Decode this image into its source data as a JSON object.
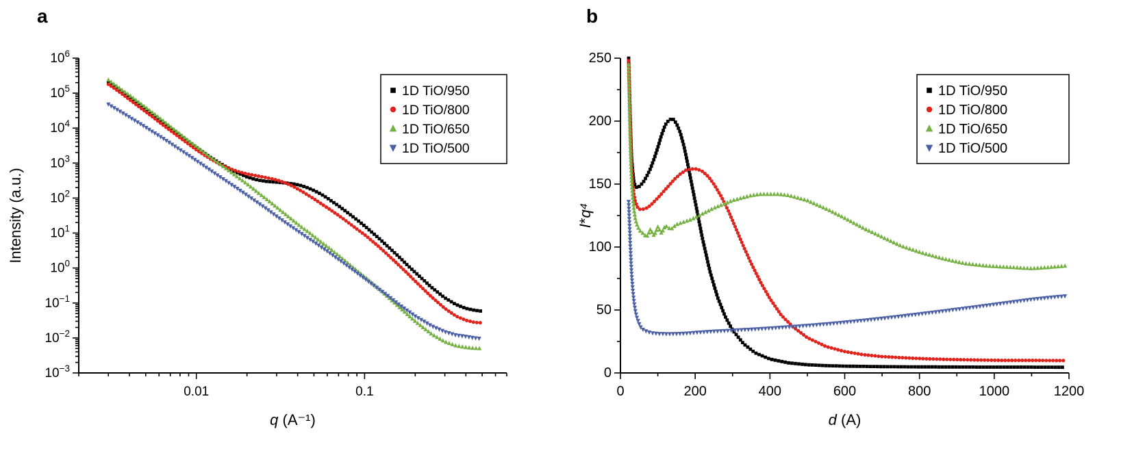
{
  "figure": {
    "background": "#ffffff"
  },
  "chart_data": [
    {
      "panel_label": "a",
      "type": "scatter",
      "x_scale": "log",
      "y_scale": "log",
      "xlim": [
        0.002,
        0.7
      ],
      "ylim": [
        0.001,
        1000000
      ],
      "grid": false,
      "xlabel_parts": [
        {
          "text": "q",
          "italic": true
        },
        {
          "text": " (A⁻¹)",
          "italic": false
        }
      ],
      "ylabel_parts": [
        {
          "text": "Intensity (a.u.)",
          "italic": false
        }
      ],
      "x_ticks": [
        {
          "v": 0.01,
          "label": "0.01"
        },
        {
          "v": 0.1,
          "label": "0.1"
        }
      ],
      "y_ticks": [
        {
          "v": 1000000,
          "exp": 6
        },
        {
          "v": 100000,
          "exp": 5
        },
        {
          "v": 10000,
          "exp": 4
        },
        {
          "v": 1000,
          "exp": 3
        },
        {
          "v": 100,
          "exp": 2
        },
        {
          "v": 10,
          "exp": 1
        },
        {
          "v": 1,
          "exp": 0
        },
        {
          "v": 0.1,
          "exp": -1
        },
        {
          "v": 0.01,
          "exp": -2
        },
        {
          "v": 0.001,
          "exp": -3
        }
      ],
      "legend": {
        "position": "top-right"
      },
      "series": [
        {
          "name": "1D TiO/950",
          "color": "#000000",
          "marker": "square",
          "x": [
            0.003,
            0.0033,
            0.0036,
            0.004,
            0.0045,
            0.005,
            0.0055,
            0.006,
            0.007,
            0.008,
            0.009,
            0.01,
            0.012,
            0.014,
            0.016,
            0.018,
            0.02,
            0.023,
            0.026,
            0.03,
            0.034,
            0.038,
            0.042,
            0.046,
            0.05,
            0.055,
            0.06,
            0.07,
            0.08,
            0.09,
            0.1,
            0.12,
            0.14,
            0.16,
            0.18,
            0.2,
            0.25,
            0.3,
            0.35,
            0.4,
            0.45,
            0.5
          ],
          "y": [
            200000,
            150000,
            110000,
            75000,
            50000,
            34000,
            24000,
            17500,
            9800,
            6000,
            3900,
            2700,
            1500,
            950,
            660,
            500,
            400,
            330,
            300,
            285,
            270,
            252,
            228,
            196,
            165,
            130,
            100,
            60,
            37,
            24,
            16,
            7.5,
            3.8,
            2.1,
            1.2,
            0.75,
            0.28,
            0.14,
            0.09,
            0.07,
            0.062,
            0.058
          ]
        },
        {
          "name": "1D TiO/800",
          "color": "#e0231d",
          "marker": "circle",
          "x": [
            0.003,
            0.0033,
            0.0036,
            0.004,
            0.0045,
            0.005,
            0.0055,
            0.006,
            0.007,
            0.008,
            0.009,
            0.01,
            0.012,
            0.014,
            0.016,
            0.018,
            0.02,
            0.023,
            0.026,
            0.03,
            0.034,
            0.038,
            0.042,
            0.046,
            0.05,
            0.055,
            0.06,
            0.07,
            0.08,
            0.09,
            0.1,
            0.12,
            0.14,
            0.16,
            0.18,
            0.2,
            0.25,
            0.3,
            0.35,
            0.4,
            0.45,
            0.5
          ],
          "y": [
            180000,
            132000,
            97000,
            66000,
            43000,
            29500,
            21000,
            15000,
            8600,
            5300,
            3500,
            2400,
            1350,
            900,
            680,
            560,
            490,
            430,
            385,
            330,
            270,
            210,
            160,
            122,
            95,
            70,
            53,
            32,
            20,
            13,
            9,
            4.3,
            2.2,
            1.2,
            0.7,
            0.42,
            0.15,
            0.07,
            0.042,
            0.032,
            0.028,
            0.027
          ]
        },
        {
          "name": "1D TiO/650",
          "color": "#74b042",
          "marker": "triangle-up",
          "x": [
            0.003,
            0.0033,
            0.0036,
            0.004,
            0.0045,
            0.005,
            0.0055,
            0.006,
            0.007,
            0.008,
            0.009,
            0.01,
            0.012,
            0.014,
            0.016,
            0.018,
            0.02,
            0.023,
            0.026,
            0.03,
            0.034,
            0.038,
            0.042,
            0.046,
            0.05,
            0.055,
            0.06,
            0.07,
            0.08,
            0.09,
            0.1,
            0.12,
            0.14,
            0.16,
            0.18,
            0.2,
            0.25,
            0.3,
            0.35,
            0.4,
            0.45,
            0.5
          ],
          "y": [
            240000,
            170000,
            125000,
            88000,
            57000,
            39000,
            27500,
            20000,
            11200,
            6800,
            4400,
            3000,
            1550,
            900,
            560,
            370,
            255,
            150,
            95,
            55,
            34,
            22,
            15,
            11,
            8,
            5.6,
            4.1,
            2.3,
            1.35,
            0.85,
            0.56,
            0.27,
            0.14,
            0.078,
            0.047,
            0.03,
            0.013,
            0.0078,
            0.006,
            0.0054,
            0.0051,
            0.005
          ]
        },
        {
          "name": "1D TiO/500",
          "color": "#4a5fa5",
          "marker": "triangle-down",
          "x": [
            0.003,
            0.0033,
            0.0036,
            0.004,
            0.0045,
            0.005,
            0.0055,
            0.006,
            0.007,
            0.008,
            0.009,
            0.01,
            0.012,
            0.014,
            0.016,
            0.018,
            0.02,
            0.023,
            0.026,
            0.03,
            0.034,
            0.038,
            0.042,
            0.046,
            0.05,
            0.055,
            0.06,
            0.07,
            0.08,
            0.09,
            0.1,
            0.12,
            0.14,
            0.16,
            0.18,
            0.2,
            0.25,
            0.3,
            0.35,
            0.4,
            0.45,
            0.5
          ],
          "y": [
            48000,
            36000,
            28000,
            20500,
            14500,
            10500,
            7800,
            6000,
            3700,
            2400,
            1650,
            1170,
            640,
            385,
            250,
            170,
            120,
            75,
            50,
            30,
            19.5,
            13.5,
            9.7,
            7.2,
            5.5,
            4.0,
            3.0,
            1.75,
            1.1,
            0.72,
            0.5,
            0.26,
            0.15,
            0.09,
            0.06,
            0.042,
            0.022,
            0.015,
            0.012,
            0.011,
            0.01,
            0.0095
          ]
        }
      ]
    },
    {
      "panel_label": "b",
      "type": "scatter",
      "x_scale": "linear",
      "y_scale": "linear",
      "xlim": [
        0,
        1200
      ],
      "ylim": [
        0,
        250
      ],
      "grid": false,
      "x_minor_step": 100,
      "y_minor_step": 25,
      "xlabel_parts": [
        {
          "text": "d",
          "italic": true
        },
        {
          "text": " (A)",
          "italic": false
        }
      ],
      "ylabel_parts": [
        {
          "text": "I",
          "italic": true
        },
        {
          "text": "*",
          "italic": false
        },
        {
          "text": "q⁴",
          "italic": true
        }
      ],
      "x_ticks": [
        {
          "v": 0,
          "label": "0"
        },
        {
          "v": 200,
          "label": "200"
        },
        {
          "v": 400,
          "label": "400"
        },
        {
          "v": 600,
          "label": "600"
        },
        {
          "v": 800,
          "label": "800"
        },
        {
          "v": 1000,
          "label": "1000"
        },
        {
          "v": 1200,
          "label": "1200"
        }
      ],
      "y_ticks": [
        {
          "v": 0,
          "label": "0"
        },
        {
          "v": 50,
          "label": "50"
        },
        {
          "v": 100,
          "label": "100"
        },
        {
          "v": 150,
          "label": "150"
        },
        {
          "v": 200,
          "label": "200"
        },
        {
          "v": 250,
          "label": "250"
        }
      ],
      "legend": {
        "position": "top-right"
      },
      "series": [
        {
          "name": "1D TiO/950",
          "color": "#000000",
          "marker": "square",
          "x": [
            22,
            24,
            26,
            28,
            30,
            33,
            36,
            40,
            45,
            50,
            60,
            70,
            80,
            90,
            100,
            110,
            120,
            130,
            140,
            150,
            160,
            170,
            180,
            190,
            200,
            220,
            240,
            260,
            280,
            300,
            330,
            360,
            400,
            450,
            500,
            550,
            600,
            700,
            800,
            900,
            1000,
            1100,
            1190
          ],
          "y": [
            250,
            228,
            205,
            186,
            170,
            160,
            152,
            148,
            147,
            148,
            151,
            156,
            162,
            170,
            179,
            189,
            197,
            201,
            202,
            198,
            191,
            180,
            166,
            151,
            136,
            106,
            80,
            60,
            45,
            34,
            23,
            16,
            11,
            8,
            6.5,
            5.8,
            5.4,
            5,
            4.8,
            4.7,
            4.6,
            4.6,
            4.5
          ]
        },
        {
          "name": "1D TiO/800",
          "color": "#e0231d",
          "marker": "circle",
          "x": [
            22,
            24,
            26,
            28,
            30,
            33,
            36,
            40,
            45,
            50,
            60,
            70,
            80,
            90,
            100,
            115,
            130,
            145,
            160,
            175,
            190,
            205,
            220,
            235,
            250,
            270,
            290,
            310,
            330,
            350,
            375,
            400,
            430,
            460,
            500,
            550,
            600,
            650,
            700,
            760,
            820,
            880,
            950,
            1020,
            1100,
            1190
          ],
          "y": [
            248,
            224,
            200,
            178,
            163,
            150,
            142,
            136,
            132,
            130,
            130,
            131,
            133,
            136,
            139,
            144,
            149,
            154,
            158,
            161,
            162,
            162,
            160,
            156,
            150,
            140,
            128,
            114,
            100,
            87,
            72,
            59,
            46,
            37,
            28,
            21,
            17,
            14.5,
            13,
            12,
            11.2,
            10.7,
            10.3,
            10,
            10,
            9.8
          ]
        },
        {
          "name": "1D TiO/650",
          "color": "#74b042",
          "marker": "triangle-up",
          "x": [
            22,
            24,
            26,
            28,
            30,
            33,
            36,
            40,
            45,
            50,
            55,
            60,
            70,
            80,
            90,
            100,
            110,
            120,
            135,
            150,
            170,
            190,
            210,
            230,
            250,
            275,
            300,
            325,
            350,
            375,
            400,
            425,
            450,
            475,
            500,
            530,
            560,
            600,
            650,
            700,
            750,
            800,
            860,
            920,
            980,
            1040,
            1100,
            1150,
            1190
          ],
          "y": [
            245,
            214,
            188,
            167,
            151,
            139,
            130,
            122,
            117,
            114,
            112,
            111,
            108,
            114,
            109,
            116,
            111,
            117,
            114,
            118,
            120,
            122,
            125,
            128,
            131,
            134,
            137,
            139,
            141,
            142,
            142,
            142,
            141,
            139,
            137,
            133,
            129,
            123,
            115,
            108,
            101,
            96,
            91,
            87,
            85,
            84,
            83,
            84,
            85
          ]
        },
        {
          "name": "1D TiO/500",
          "color": "#4a5fa5",
          "marker": "triangle-down",
          "x": [
            22,
            24,
            26,
            28,
            30,
            33,
            36,
            40,
            45,
            50,
            55,
            60,
            70,
            80,
            90,
            100,
            120,
            140,
            160,
            180,
            200,
            250,
            300,
            350,
            400,
            450,
            500,
            550,
            600,
            650,
            700,
            750,
            800,
            850,
            900,
            950,
            1000,
            1050,
            1100,
            1150,
            1190
          ],
          "y": [
            136,
            120,
            104,
            90,
            78,
            66,
            57,
            49,
            43,
            39,
            36,
            34.5,
            33,
            32,
            31.5,
            31.2,
            31,
            31,
            31.2,
            31.5,
            32,
            33,
            33.8,
            34.6,
            35.5,
            36.5,
            37.6,
            38.8,
            40.2,
            41.7,
            43.3,
            45,
            46.8,
            48.6,
            50.5,
            52.4,
            54.4,
            56.4,
            58.4,
            60,
            61
          ]
        }
      ]
    }
  ]
}
